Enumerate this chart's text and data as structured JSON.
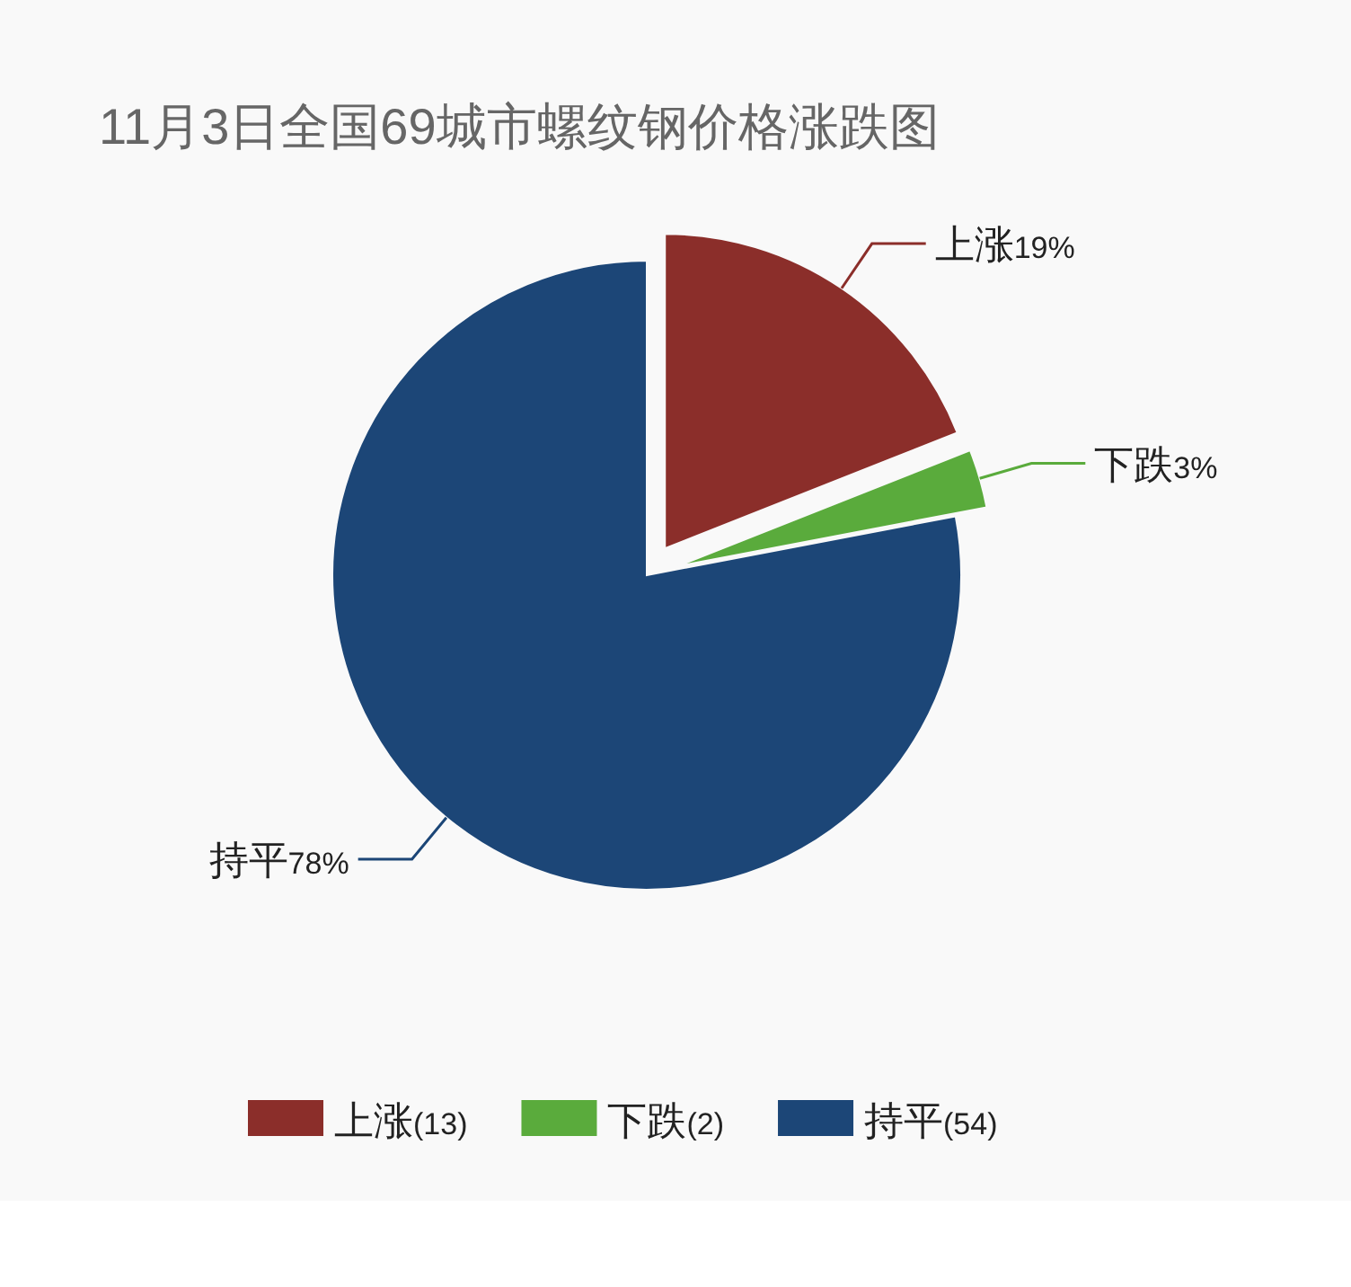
{
  "chart_data": {
    "type": "pie",
    "title": "11月3日全国69城市螺纹钢价格涨跌图",
    "categories": [
      "上涨",
      "下跌",
      "持平"
    ],
    "values": [
      19,
      3,
      78
    ],
    "value_labels": [
      "19%",
      "3%",
      "78%"
    ],
    "annotations": [
      "(13)",
      "(2)",
      "(54)"
    ],
    "colors": [
      "#8b2e2a",
      "#5aab3c",
      "#1c4677"
    ],
    "legend": "bottom"
  }
}
